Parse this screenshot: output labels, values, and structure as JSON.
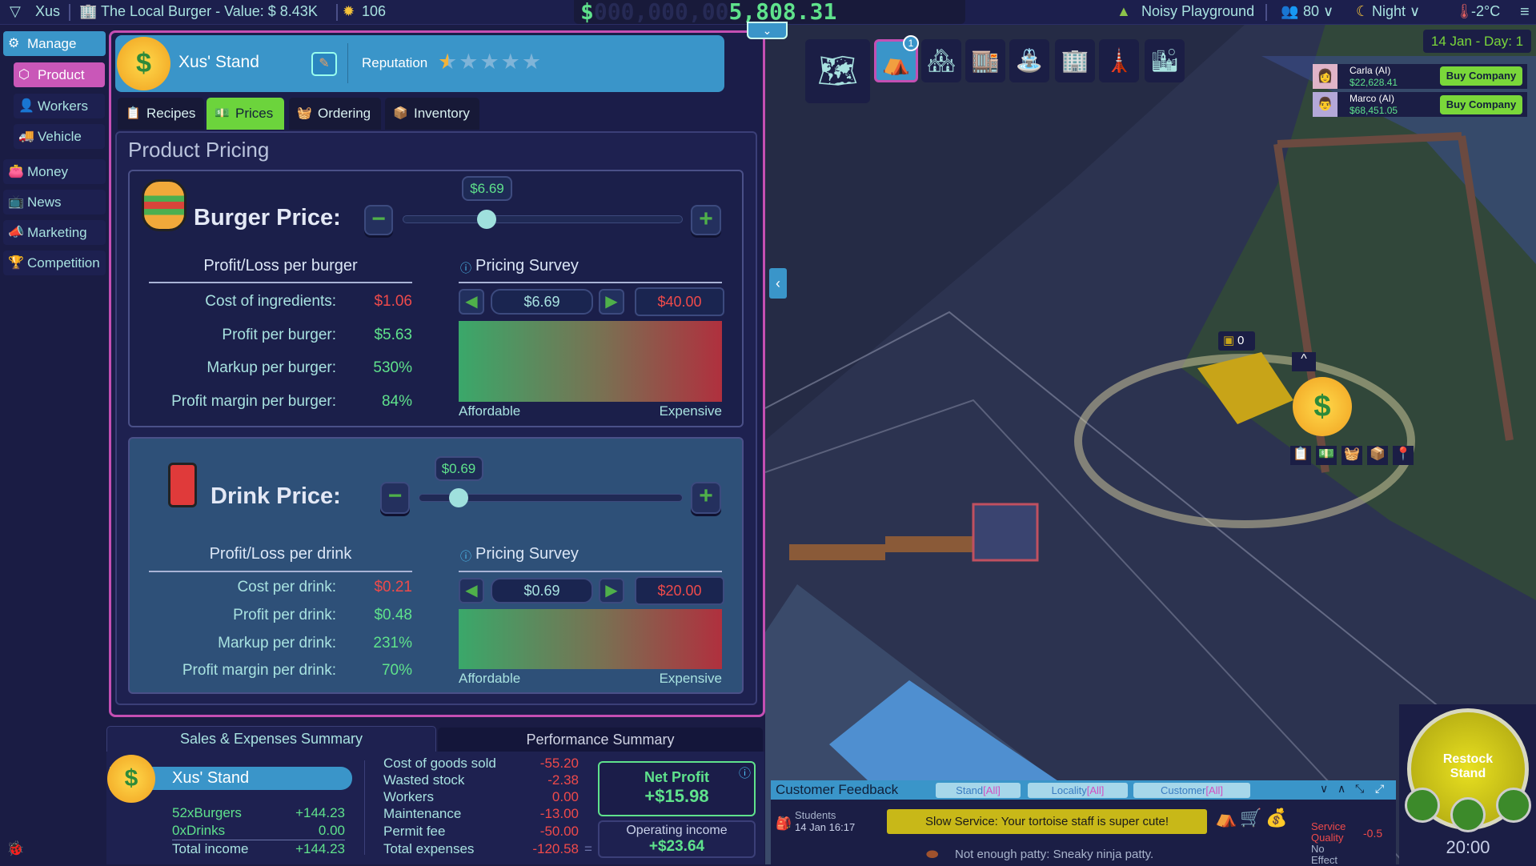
{
  "topbar": {
    "player_name": "Xus",
    "company": "The Local Burger - Value: $ 8.43K",
    "ideas_count": "106",
    "money_prefix": "$",
    "money_leading": "000,000,00",
    "money_value": "5,808.31",
    "location": "Noisy Playground",
    "population": "80",
    "time_of_day": "Night",
    "temperature": "-2°C"
  },
  "sidebar": {
    "items": [
      {
        "label": "Manage",
        "icon": "gear-icon"
      },
      {
        "label": "Product",
        "icon": "cube-icon"
      },
      {
        "label": "Workers",
        "icon": "person-icon"
      },
      {
        "label": "Vehicle",
        "icon": "truck-icon"
      },
      {
        "label": "Money",
        "icon": "wallet-icon"
      },
      {
        "label": "News",
        "icon": "tv-icon"
      },
      {
        "label": "Marketing",
        "icon": "megaphone-icon"
      },
      {
        "label": "Competition",
        "icon": "podium-icon"
      }
    ]
  },
  "stand": {
    "name": "Xus' Stand",
    "reputation_label": "Reputation",
    "reputation_stars": 0.5,
    "reputation_max": 5
  },
  "tabs": [
    {
      "label": "Recipes",
      "icon": "clipboard-icon"
    },
    {
      "label": "Prices",
      "icon": "cash-icon",
      "active": true
    },
    {
      "label": "Ordering",
      "icon": "basket-icon"
    },
    {
      "label": "Inventory",
      "icon": "box-icon"
    }
  ],
  "pricing": {
    "title": "Product Pricing",
    "burger": {
      "title": "Burger Price:",
      "price": "$6.69",
      "slider_level": 0.3,
      "pl_heading": "Profit/Loss per burger",
      "rows": [
        {
          "label": "Cost of ingredients:",
          "value": "$1.06",
          "tone": "red"
        },
        {
          "label": "Profit per burger:",
          "value": "$5.63",
          "tone": "green"
        },
        {
          "label": "Markup per burger:",
          "value": "530%",
          "tone": "green"
        },
        {
          "label": "Profit margin per burger:",
          "value": "84%",
          "tone": "green"
        }
      ],
      "survey_heading": "Pricing Survey",
      "survey_price": "$6.69",
      "survey_max": "$40.00",
      "affordable": "Affordable",
      "expensive": "Expensive"
    },
    "drink": {
      "title": "Drink Price:",
      "price": "$0.69",
      "slider_level": 0.15,
      "pl_heading": "Profit/Loss per drink",
      "rows": [
        {
          "label": "Cost per drink:",
          "value": "$0.21",
          "tone": "red"
        },
        {
          "label": "Profit per drink:",
          "value": "$0.48",
          "tone": "green"
        },
        {
          "label": "Markup per drink:",
          "value": "231%",
          "tone": "green"
        },
        {
          "label": "Profit margin per drink:",
          "value": "70%",
          "tone": "green"
        }
      ],
      "survey_heading": "Pricing Survey",
      "survey_price": "$0.69",
      "survey_max": "$20.00",
      "affordable": "Affordable",
      "expensive": "Expensive"
    }
  },
  "summary": {
    "tab_sales": "Sales & Expenses Summary",
    "tab_performance": "Performance Summary",
    "stand_name": "Xus' Stand",
    "income": [
      {
        "label": "52xBurgers",
        "value": "+144.23"
      },
      {
        "label": "0xDrinks",
        "value": "0.00"
      }
    ],
    "total_income_label": "Total income",
    "total_income": "+144.23",
    "expenses": [
      {
        "label": "Cost of goods sold",
        "value": "-55.20"
      },
      {
        "label": "Wasted stock",
        "value": "-2.38"
      },
      {
        "label": "Workers",
        "value": "0.00"
      },
      {
        "label": "Maintenance",
        "value": "-13.00"
      },
      {
        "label": "Permit fee",
        "value": "-50.00"
      }
    ],
    "total_expenses_label": "Total expenses",
    "total_expenses": "-120.58",
    "equals": "=",
    "net_profit_label": "Net Profit",
    "net_profit": "+$15.98",
    "operating_label": "Operating income",
    "operating_income": "+$23.64"
  },
  "game": {
    "date": "14 Jan - Day: 1",
    "toolbar_badge": "1",
    "rivals": [
      {
        "name": "Carla (AI)",
        "money": "$22,628.41",
        "button": "Buy Company"
      },
      {
        "name": "Marco (AI)",
        "money": "$68,451.05",
        "button": "Buy Company"
      }
    ],
    "stand_stock": "0",
    "restock_label": "Restock Stand",
    "clock": "20:00"
  },
  "feedback": {
    "title": "Customer Feedback",
    "filters": [
      {
        "label": "Stand",
        "value": "[All]"
      },
      {
        "label": "Locality",
        "value": "[All]"
      },
      {
        "label": "Customer",
        "value": "[All]"
      }
    ],
    "entry": {
      "customer": "Students",
      "time": "14 Jan 16:17",
      "message": "Slow Service: Your tortoise staff is super cute!",
      "effect_label": "Service Quality",
      "effect_value": "-0.5",
      "message2": "Not enough patty: Sneaky ninja patty.",
      "effect2": "No Effect"
    }
  },
  "colors": {
    "accent_pink": "#c44fb3",
    "header_blue": "#3a95c9",
    "positive": "#5fe28c",
    "negative": "#ef4a4a",
    "tab_active": "#6cd43c"
  }
}
